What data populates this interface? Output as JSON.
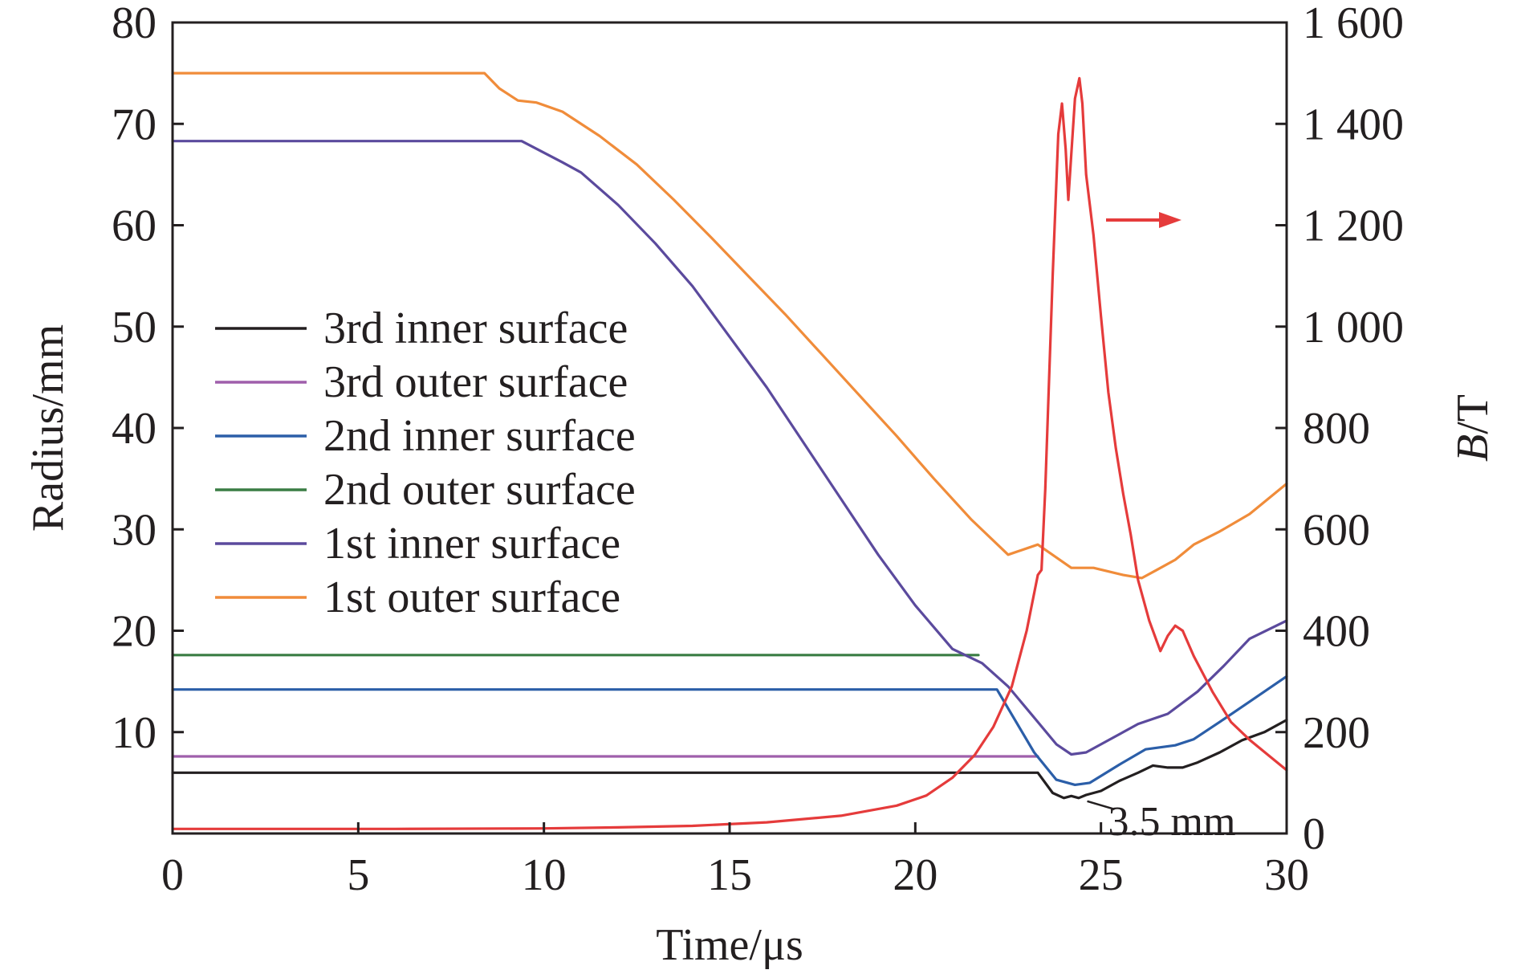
{
  "chart_data": {
    "type": "line",
    "xlabel": "Time/μs",
    "ylabel_left": "Radius/mm",
    "ylabel_right": "B/T",
    "xlim": [
      0,
      30
    ],
    "ylim_left": [
      0,
      80
    ],
    "ylim_right": [
      0,
      1600
    ],
    "x_ticks": [
      0,
      5,
      10,
      15,
      20,
      25,
      30
    ],
    "x_tick_labels": [
      "0",
      "5",
      "10",
      "15",
      "20",
      "25",
      "30"
    ],
    "y_left_ticks": [
      10,
      20,
      30,
      40,
      50,
      60,
      70,
      80
    ],
    "y_left_tick_labels": [
      "10",
      "20",
      "30",
      "40",
      "50",
      "60",
      "70",
      "80"
    ],
    "y_right_ticks": [
      0,
      200,
      400,
      600,
      800,
      1000,
      1200,
      1400,
      1600
    ],
    "y_right_tick_labels": [
      "0",
      "200",
      "400",
      "600",
      "800",
      "1 000",
      "1 200",
      "1 400",
      "1 600"
    ],
    "grid": false,
    "legend_position": "center-left",
    "series": [
      {
        "name": "3rd inner surface",
        "axis": "left",
        "color": "#231f20",
        "points": [
          [
            0,
            6
          ],
          [
            23.3,
            6
          ],
          [
            23.7,
            4
          ],
          [
            24.0,
            3.5
          ],
          [
            24.2,
            3.7
          ],
          [
            24.4,
            3.5
          ],
          [
            24.6,
            3.8
          ],
          [
            25.0,
            4.2
          ],
          [
            25.5,
            5.2
          ],
          [
            26.0,
            6.0
          ],
          [
            26.4,
            6.7
          ],
          [
            26.8,
            6.5
          ],
          [
            27.2,
            6.5
          ],
          [
            27.6,
            7.0
          ],
          [
            28.2,
            8.0
          ],
          [
            28.8,
            9.2
          ],
          [
            29.4,
            10.0
          ],
          [
            30,
            11.2
          ]
        ]
      },
      {
        "name": "3rd outer surface",
        "axis": "left",
        "color": "#9f5fab",
        "points": [
          [
            0,
            7.6
          ],
          [
            23.3,
            7.6
          ]
        ]
      },
      {
        "name": "2nd inner surface",
        "axis": "left",
        "color": "#2b5ea8",
        "points": [
          [
            0,
            14.2
          ],
          [
            22.2,
            14.2
          ],
          [
            23.2,
            8
          ],
          [
            23.8,
            5.3
          ],
          [
            24.3,
            4.8
          ],
          [
            24.7,
            5.0
          ],
          [
            25.5,
            6.8
          ],
          [
            26.2,
            8.3
          ],
          [
            27.0,
            8.7
          ],
          [
            27.5,
            9.3
          ],
          [
            28.2,
            11.0
          ],
          [
            29.0,
            13.0
          ],
          [
            30,
            15.5
          ]
        ]
      },
      {
        "name": "2nd outer surface",
        "axis": "left",
        "color": "#3a7d44",
        "points": [
          [
            0,
            17.6
          ],
          [
            21.7,
            17.6
          ]
        ]
      },
      {
        "name": "1st inner surface",
        "axis": "left",
        "color": "#5b4a9d",
        "points": [
          [
            0,
            68.3
          ],
          [
            9.4,
            68.3
          ],
          [
            10.5,
            66.2
          ],
          [
            11.0,
            65.2
          ],
          [
            12.0,
            62.0
          ],
          [
            13.0,
            58.2
          ],
          [
            14.0,
            54.0
          ],
          [
            15.0,
            49.0
          ],
          [
            16.0,
            44.0
          ],
          [
            17.0,
            38.5
          ],
          [
            18.0,
            33.0
          ],
          [
            19.0,
            27.5
          ],
          [
            20.0,
            22.5
          ],
          [
            21.0,
            18.2
          ],
          [
            21.8,
            16.8
          ],
          [
            22.5,
            14.5
          ],
          [
            23.3,
            11.0
          ],
          [
            23.8,
            8.8
          ],
          [
            24.2,
            7.8
          ],
          [
            24.6,
            8.0
          ],
          [
            25.2,
            9.2
          ],
          [
            26.0,
            10.8
          ],
          [
            26.8,
            11.8
          ],
          [
            27.6,
            14.0
          ],
          [
            28.3,
            16.5
          ],
          [
            29.0,
            19.2
          ],
          [
            30,
            21.0
          ]
        ]
      },
      {
        "name": "1st outer surface",
        "axis": "left",
        "color": "#f08c3a",
        "points": [
          [
            0,
            75
          ],
          [
            8.4,
            75
          ],
          [
            8.8,
            73.5
          ],
          [
            9.3,
            72.3
          ],
          [
            9.8,
            72.1
          ],
          [
            10.5,
            71.2
          ],
          [
            11.5,
            68.8
          ],
          [
            12.5,
            66.0
          ],
          [
            13.5,
            62.5
          ],
          [
            14.5,
            58.8
          ],
          [
            15.5,
            55.0
          ],
          [
            16.5,
            51.2
          ],
          [
            17.5,
            47.2
          ],
          [
            18.5,
            43.2
          ],
          [
            19.5,
            39.2
          ],
          [
            20.5,
            35.0
          ],
          [
            21.5,
            31.0
          ],
          [
            22.5,
            27.5
          ],
          [
            23.3,
            28.5
          ],
          [
            24.2,
            26.2
          ],
          [
            24.8,
            26.2
          ],
          [
            25.6,
            25.5
          ],
          [
            26.1,
            25.2
          ],
          [
            26.5,
            26.0
          ],
          [
            27.0,
            27.0
          ],
          [
            27.5,
            28.5
          ],
          [
            28.2,
            29.8
          ],
          [
            29.0,
            31.5
          ],
          [
            30,
            34.5
          ]
        ]
      },
      {
        "name": "B",
        "axis": "right",
        "color": "#e53b3b",
        "points": [
          [
            0,
            9
          ],
          [
            6,
            9
          ],
          [
            10,
            10
          ],
          [
            12,
            12
          ],
          [
            14,
            15
          ],
          [
            16,
            22
          ],
          [
            18,
            35
          ],
          [
            19.5,
            55
          ],
          [
            20.3,
            75
          ],
          [
            21.0,
            110
          ],
          [
            21.6,
            155
          ],
          [
            22.1,
            210
          ],
          [
            22.6,
            290
          ],
          [
            23.0,
            400
          ],
          [
            23.3,
            510
          ],
          [
            23.4,
            520
          ],
          [
            23.5,
            680
          ],
          [
            23.7,
            1100
          ],
          [
            23.85,
            1380
          ],
          [
            23.95,
            1440
          ],
          [
            24.05,
            1350
          ],
          [
            24.12,
            1250
          ],
          [
            24.2,
            1340
          ],
          [
            24.3,
            1450
          ],
          [
            24.42,
            1490
          ],
          [
            24.5,
            1440
          ],
          [
            24.6,
            1300
          ],
          [
            24.8,
            1180
          ],
          [
            25.0,
            1020
          ],
          [
            25.2,
            870
          ],
          [
            25.4,
            760
          ],
          [
            25.6,
            670
          ],
          [
            25.8,
            590
          ],
          [
            26.0,
            500
          ],
          [
            26.3,
            420
          ],
          [
            26.6,
            360
          ],
          [
            26.8,
            390
          ],
          [
            27.0,
            410
          ],
          [
            27.2,
            400
          ],
          [
            27.5,
            350
          ],
          [
            28.0,
            280
          ],
          [
            28.5,
            220
          ],
          [
            29.0,
            185
          ],
          [
            29.5,
            155
          ],
          [
            30,
            125
          ]
        ]
      }
    ],
    "annotations": [
      {
        "text": "3.5 mm",
        "x": 24.5,
        "y_left": 3.5
      }
    ]
  }
}
